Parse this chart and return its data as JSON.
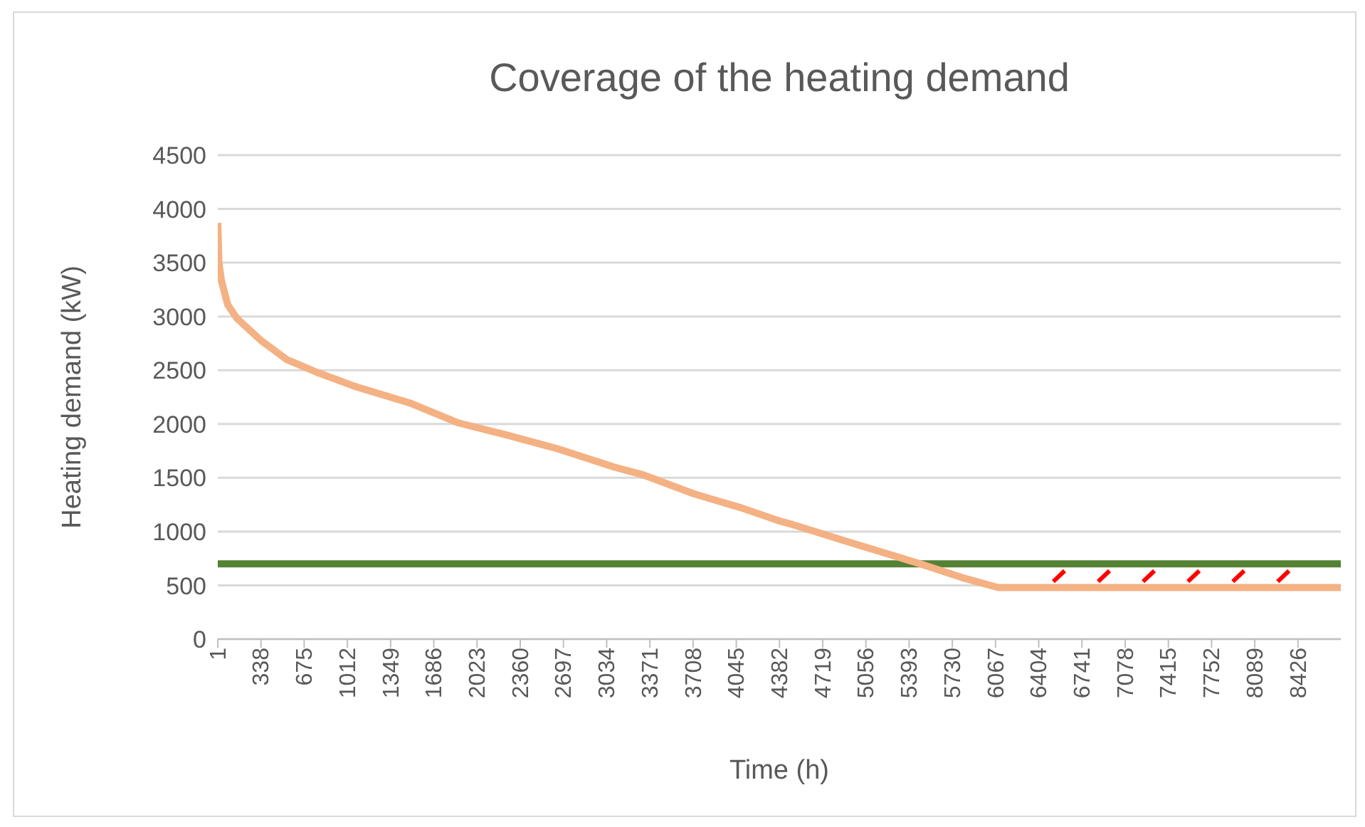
{
  "chart_data": {
    "type": "line",
    "title": "Coverage of the heating demand",
    "xlabel": "Time (h)",
    "ylabel": "Heating demand (kW)",
    "xlim": [
      1,
      8760
    ],
    "xticks": [
      1,
      338,
      675,
      1012,
      1349,
      1686,
      2023,
      2360,
      2697,
      3034,
      3371,
      3708,
      4045,
      4382,
      4719,
      5056,
      5393,
      5730,
      6067,
      6404,
      6741,
      7078,
      7415,
      7752,
      8089,
      8426
    ],
    "ylim": [
      0,
      4500
    ],
    "yticks": [
      0,
      500,
      1000,
      1500,
      2000,
      2500,
      3000,
      3500,
      4000,
      4500
    ],
    "grid": "y",
    "legend": false,
    "marker": "none",
    "line_style": "solid",
    "series": [
      {
        "color": "#f4b183",
        "x": [
          1,
          10,
          30,
          78,
          152,
          335,
          538,
          776,
          1070,
          1512,
          1879,
          2247,
          2651,
          3092,
          3312,
          3717,
          4085,
          4378,
          4470,
          4929,
          5480,
          5811,
          6087,
          8760
        ],
        "values": [
          3870,
          3500,
          3330,
          3110,
          2980,
          2780,
          2600,
          2480,
          2350,
          2190,
          2010,
          1900,
          1770,
          1600,
          1530,
          1350,
          1220,
          1100,
          1070,
          900,
          700,
          570,
          480,
          480
        ]
      }
    ],
    "ref_lines": [
      {
        "axis": "y",
        "value": 700,
        "color": "#548235"
      }
    ]
  }
}
